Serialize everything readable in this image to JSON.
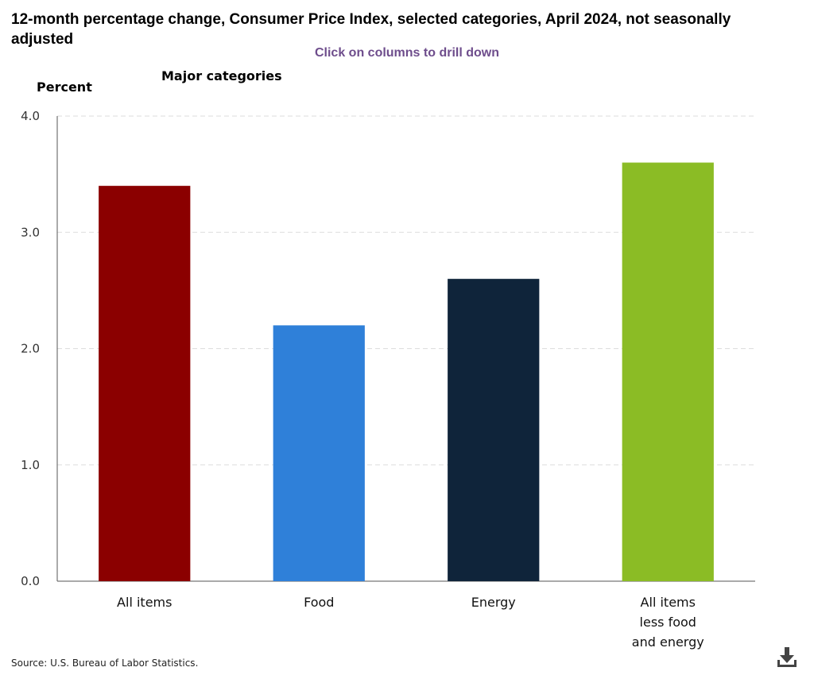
{
  "header": {
    "title": "12-month percentage change, Consumer Price Index, selected categories, April 2024, not seasonally adjusted",
    "drill_hint": "Click on columns to drill down"
  },
  "footer": {
    "source": "Source: U.S. Bureau of Labor Statistics.",
    "download_icon": "download-icon"
  },
  "chart_data": {
    "type": "bar",
    "title": "12-month percentage change, Consumer Price Index, selected categories, April 2024, not seasonally adjusted",
    "subtitle": "Major categories",
    "ylabel": "Percent",
    "xlabel": "",
    "ylim": [
      0,
      4
    ],
    "yticks": [
      "0.0",
      "1.0",
      "2.0",
      "3.0",
      "4.0"
    ],
    "grid": true,
    "categories": [
      [
        "All items"
      ],
      [
        "Food"
      ],
      [
        "Energy"
      ],
      [
        "All items",
        "less food",
        "and energy"
      ]
    ],
    "values": [
      3.4,
      2.2,
      2.6,
      3.6
    ],
    "colors": [
      "#8b0000",
      "#2f80d9",
      "#0f243a",
      "#8bbc25"
    ]
  }
}
